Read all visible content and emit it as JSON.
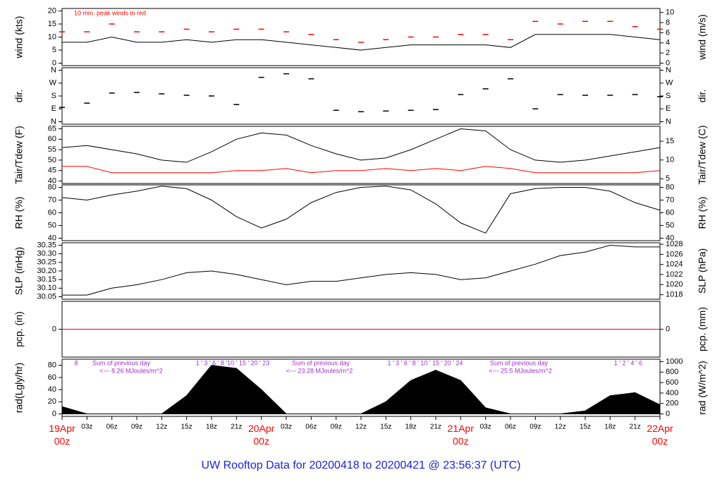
{
  "title": "UW Rooftop Data for 20200418  to  20200421 @ 23:56:37  (UTC)",
  "title_color": "#2020e0",
  "chart_data": [
    {
      "type": "line",
      "ylabel": "wind (kts)",
      "y2label": "wind (m/s)",
      "annotation": "10 min. peak winds in red",
      "annotation_color": "#ff0000",
      "x": [
        0,
        3,
        6,
        9,
        12,
        15,
        18,
        21,
        24,
        27,
        30,
        33,
        36,
        39,
        42,
        45,
        48,
        51,
        54,
        57,
        60,
        63,
        66,
        69,
        72
      ],
      "xlim": [
        0,
        72
      ],
      "ylim": [
        0,
        20
      ],
      "yticks": [
        0,
        5,
        10,
        15,
        20
      ],
      "y2lim": [
        0,
        10.3
      ],
      "y2ticks": [
        0,
        2,
        4,
        6,
        8,
        10
      ],
      "series": [
        {
          "color": "#000000",
          "values": [
            8,
            8,
            10,
            8,
            8,
            9,
            8,
            9,
            9,
            8,
            7,
            6,
            5,
            6,
            7,
            7,
            7,
            7,
            6,
            11,
            11,
            11,
            11,
            10,
            9
          ]
        },
        {
          "color": "#ff0000",
          "marker": "dash",
          "values": [
            12,
            12,
            15,
            12,
            12,
            13,
            12,
            13,
            13,
            12,
            11,
            9,
            8,
            9,
            10,
            10,
            11,
            11,
            9,
            16,
            15,
            16,
            16,
            14,
            13
          ]
        }
      ]
    },
    {
      "type": "scatter",
      "ylabel": "dir.",
      "y2label": "dir.",
      "x": [
        0,
        3,
        6,
        9,
        12,
        15,
        18,
        21,
        24,
        27,
        30,
        33,
        36,
        39,
        42,
        45,
        48,
        51,
        54,
        57,
        60,
        63,
        66,
        69,
        72
      ],
      "xlim": [
        0,
        72
      ],
      "ylim": [
        0,
        360
      ],
      "yticks": [
        {
          "value": 0,
          "label": "N"
        },
        {
          "value": 90,
          "label": "E"
        },
        {
          "value": 180,
          "label": "S"
        },
        {
          "value": 270,
          "label": "W"
        },
        {
          "value": 360,
          "label": "N"
        }
      ],
      "y2lim": [
        0,
        360
      ],
      "y2ticks": [
        {
          "value": 0,
          "label": "N"
        },
        {
          "value": 90,
          "label": "E"
        },
        {
          "value": 180,
          "label": "S"
        },
        {
          "value": 270,
          "label": "W"
        },
        {
          "value": 360,
          "label": "N"
        }
      ],
      "series": [
        {
          "color": "#000000",
          "marker": "dash",
          "values": [
            100,
            130,
            200,
            205,
            195,
            185,
            180,
            120,
            310,
            335,
            300,
            80,
            70,
            75,
            80,
            85,
            190,
            230,
            300,
            90,
            190,
            185,
            185,
            190,
            175
          ]
        }
      ]
    },
    {
      "type": "line",
      "ylabel": "Tair/Tdew (F)",
      "y2label": "Tair/Tdew (C)",
      "x": [
        0,
        3,
        6,
        9,
        12,
        15,
        18,
        21,
        24,
        27,
        30,
        33,
        36,
        39,
        42,
        45,
        48,
        51,
        54,
        57,
        60,
        63,
        66,
        69,
        72
      ],
      "xlim": [
        0,
        72
      ],
      "ylim": [
        40,
        65
      ],
      "yticks": [
        40,
        45,
        50,
        55,
        60,
        65
      ],
      "y2lim": [
        4.4,
        18.3
      ],
      "y2ticks": [
        5,
        10,
        15
      ],
      "series": [
        {
          "color": "#000000",
          "values": [
            56,
            57,
            55,
            53,
            50,
            49,
            54,
            60,
            63,
            62,
            57,
            53,
            50,
            51,
            55,
            60,
            65,
            64,
            55,
            50,
            49,
            50,
            52,
            54,
            56
          ]
        },
        {
          "color": "#ff0000",
          "values": [
            47,
            47,
            44,
            44,
            44,
            44,
            44,
            45,
            45,
            46,
            44,
            45,
            45,
            46,
            45,
            46,
            45,
            47,
            46,
            44,
            44,
            44,
            44,
            44,
            45
          ]
        }
      ]
    },
    {
      "type": "line",
      "ylabel": "RH (%)",
      "y2label": "RH (%)",
      "x": [
        0,
        3,
        6,
        9,
        12,
        15,
        18,
        21,
        24,
        27,
        30,
        33,
        36,
        39,
        42,
        45,
        48,
        51,
        54,
        57,
        60,
        63,
        66,
        69,
        72
      ],
      "xlim": [
        0,
        72
      ],
      "ylim": [
        40,
        80
      ],
      "yticks": [
        40,
        50,
        60,
        70,
        80
      ],
      "y2lim": [
        40,
        80
      ],
      "y2ticks": [
        40,
        50,
        60,
        70,
        80
      ],
      "series": [
        {
          "color": "#000000",
          "values": [
            72,
            70,
            74,
            77,
            81,
            79,
            70,
            57,
            48,
            55,
            68,
            76,
            80,
            81,
            78,
            67,
            52,
            44,
            75,
            79,
            80,
            80,
            77,
            68,
            62
          ]
        }
      ]
    },
    {
      "type": "line",
      "ylabel": "SLP (inHg)",
      "y2label": "SLP (hPa)",
      "x": [
        0,
        3,
        6,
        9,
        12,
        15,
        18,
        21,
        24,
        27,
        30,
        33,
        36,
        39,
        42,
        45,
        48,
        51,
        54,
        57,
        60,
        63,
        66,
        69,
        72
      ],
      "xlim": [
        0,
        72
      ],
      "ylim": [
        30.05,
        30.35
      ],
      "yticks": [
        30.05,
        {
          "value": 30.1,
          "label": "30.10"
        },
        30.15,
        {
          "value": 30.2,
          "label": "30.20"
        },
        30.25,
        {
          "value": 30.3,
          "label": "30.30"
        },
        30.35
      ],
      "y2lim": [
        1017.6,
        1027.8
      ],
      "y2ticks": [
        1018,
        1020,
        1022,
        1024,
        1026,
        1028
      ],
      "series": [
        {
          "color": "#000000",
          "values": [
            30.06,
            30.06,
            30.1,
            30.12,
            30.15,
            30.19,
            30.2,
            30.18,
            30.15,
            30.12,
            30.14,
            30.14,
            30.16,
            30.18,
            30.19,
            30.18,
            30.15,
            30.16,
            30.2,
            30.24,
            30.29,
            30.31,
            30.35,
            30.34,
            30.34
          ]
        }
      ]
    },
    {
      "type": "line",
      "ylabel": "pcp. (in)",
      "y2label": "pcp. (mm)",
      "x": [
        0,
        3,
        6,
        9,
        12,
        15,
        18,
        21,
        24,
        27,
        30,
        33,
        36,
        39,
        42,
        45,
        48,
        51,
        54,
        57,
        60,
        63,
        66,
        69,
        72
      ],
      "xlim": [
        0,
        72
      ],
      "ylim": [
        -1,
        1
      ],
      "yticks": [
        0
      ],
      "y2lim": [
        -25.4,
        25.4
      ],
      "y2ticks": [
        0
      ],
      "series": [
        {
          "color": "#ff0000",
          "values": [
            0,
            0,
            0,
            0,
            0,
            0,
            0,
            0,
            0,
            0,
            0,
            0,
            0,
            0,
            0,
            0,
            0,
            0,
            0,
            0,
            0,
            0,
            0,
            0,
            0
          ]
        }
      ]
    },
    {
      "type": "area",
      "ylabel": "rad(Lgly/hr)",
      "y2label": "rad (W/m^2)",
      "x": [
        0,
        3,
        6,
        9,
        12,
        15,
        18,
        21,
        24,
        27,
        30,
        33,
        36,
        39,
        42,
        45,
        48,
        51,
        54,
        57,
        60,
        63,
        66,
        69,
        72
      ],
      "xlim": [
        0,
        72
      ],
      "ylim": [
        0,
        86
      ],
      "yticks": [
        0,
        20,
        40,
        60,
        80
      ],
      "y2lim": [
        0,
        1000
      ],
      "y2ticks": [
        0,
        200,
        400,
        600,
        800,
        1000
      ],
      "series": [
        {
          "color": "#000000",
          "values": [
            12,
            0,
            0,
            0,
            0,
            30,
            80,
            75,
            40,
            0,
            0,
            0,
            0,
            20,
            55,
            72,
            55,
            10,
            0,
            0,
            0,
            5,
            30,
            35,
            15
          ]
        }
      ],
      "annotation_color": "#9932cc",
      "annotations": [
        "8",
        "1 ' 3 ' 6 ' 8 '10 ' 15 ' 20 ' 23",
        "Sum of previous day",
        "<--- 8.26 MJoules/m^2",
        "1 ' 3 ' 6 ' 8 ' 10 ' 15 ' 20 ' 24",
        "Sum of previous day",
        "<--- 23.28 MJoules/m^2",
        "1 ' 2 ' 4 ' 6",
        "Sum of previous day",
        "<--- 25.5 MJoules/m^2"
      ],
      "day_tick_color": "#ff0000",
      "xticks": [
        {
          "value": 0,
          "label": "19Apr\n00z"
        },
        {
          "value": 3,
          "label": "03z"
        },
        {
          "value": 6,
          "label": "06z"
        },
        {
          "value": 9,
          "label": "09z"
        },
        {
          "value": 12,
          "label": "12z"
        },
        {
          "value": 15,
          "label": "15z"
        },
        {
          "value": 18,
          "label": "18z"
        },
        {
          "value": 21,
          "label": "21z"
        },
        {
          "value": 24,
          "label": "20Apr\n00z"
        },
        {
          "value": 27,
          "label": "03z"
        },
        {
          "value": 30,
          "label": "06z"
        },
        {
          "value": 33,
          "label": "09z"
        },
        {
          "value": 36,
          "label": "12z"
        },
        {
          "value": 39,
          "label": "15z"
        },
        {
          "value": 42,
          "label": "18z"
        },
        {
          "value": 45,
          "label": "21z"
        },
        {
          "value": 48,
          "label": "21Apr\n00z"
        },
        {
          "value": 51,
          "label": "03z"
        },
        {
          "value": 54,
          "label": "06z"
        },
        {
          "value": 57,
          "label": "09z"
        },
        {
          "value": 60,
          "label": "12z"
        },
        {
          "value": 63,
          "label": "15z"
        },
        {
          "value": 66,
          "label": "18z"
        },
        {
          "value": 69,
          "label": "21z"
        },
        {
          "value": 72,
          "label": "22Apr\n00z"
        }
      ]
    }
  ]
}
